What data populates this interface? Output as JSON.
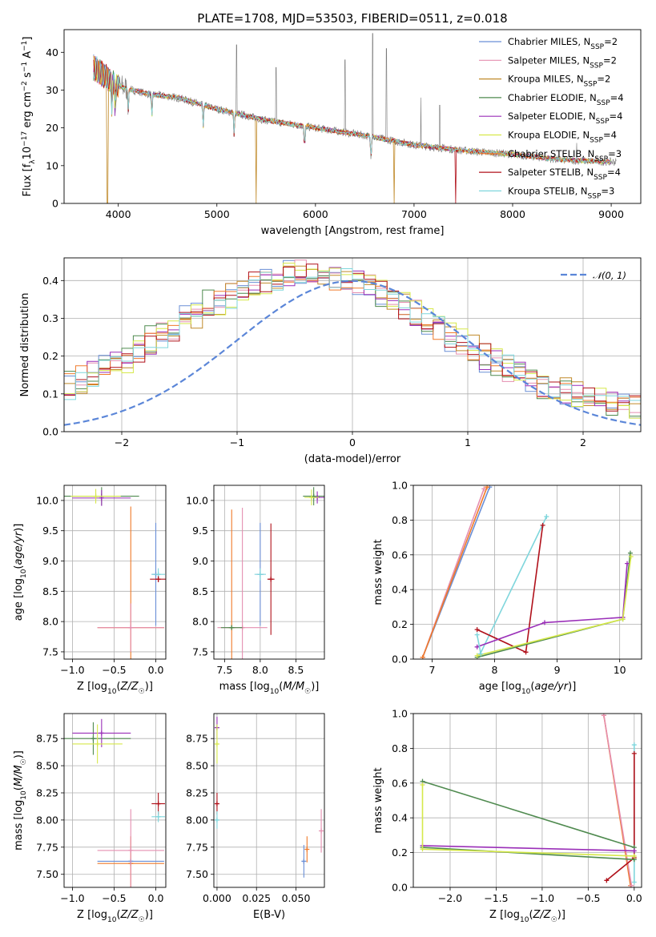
{
  "figure": {
    "title": "PLATE=1708, MJD=53503, FIBERID=0511, z=0.018"
  },
  "colors": {
    "Chabrier MILES": "#6a8fd6",
    "Salpeter MILES": "#e58fb0",
    "Kroupa MILES": "#c08a2a",
    "Chabrier ELODIE": "#4f8a4f",
    "Salpeter ELODIE": "#9a2fb8",
    "Kroupa ELODIE": "#d6e84a",
    "Chabrier STELIB": "#f07a2a",
    "Salpeter STELIB": "#b0101a",
    "Kroupa STELIB": "#7fd6dc",
    "data": "#7a7a7a",
    "normal": "#5b86d8"
  },
  "chart_data": [
    {
      "id": "spectrum",
      "type": "line",
      "xlabel": "wavelength [Angstrom, rest frame]",
      "ylabel": "Flux [f_λ 10^-17 erg cm^-2 s^-1 A^-1]",
      "xlim": [
        3450,
        9300
      ],
      "ylim": [
        0,
        46
      ],
      "xticks": [
        "4000",
        "5000",
        "6000",
        "7000",
        "8000",
        "9000"
      ],
      "yticks": [
        "0",
        "10",
        "20",
        "30",
        "40"
      ],
      "grid": false,
      "legend": "top-right",
      "legend_entries": [
        {
          "name": "Chabrier MILES",
          "nssp": "2"
        },
        {
          "name": "Salpeter MILES",
          "nssp": "2"
        },
        {
          "name": "Kroupa MILES",
          "nssp": "2"
        },
        {
          "name": "Chabrier ELODIE",
          "nssp": "4"
        },
        {
          "name": "Salpeter ELODIE",
          "nssp": "4"
        },
        {
          "name": "Kroupa ELODIE",
          "nssp": "4"
        },
        {
          "name": "Chabrier STELIB",
          "nssp": "3"
        },
        {
          "name": "Salpeter STELIB",
          "nssp": "4"
        },
        {
          "name": "Kroupa STELIB",
          "nssp": "3"
        }
      ],
      "continuum": [
        [
          3750,
          36
        ],
        [
          3900,
          33
        ],
        [
          4000,
          31
        ],
        [
          4300,
          29
        ],
        [
          4600,
          28
        ],
        [
          5000,
          25
        ],
        [
          5500,
          22
        ],
        [
          6000,
          20
        ],
        [
          6500,
          18
        ],
        [
          7000,
          15.5
        ],
        [
          7500,
          14
        ],
        [
          8000,
          13
        ],
        [
          8500,
          11.5
        ],
        [
          9000,
          11
        ]
      ],
      "data_spikes": [
        [
          5200,
          42
        ],
        [
          5600,
          36
        ],
        [
          6300,
          38
        ],
        [
          6580,
          45
        ],
        [
          6720,
          41
        ],
        [
          7070,
          28
        ],
        [
          7260,
          26
        ],
        [
          8650,
          16
        ]
      ],
      "model_dips": [
        {
          "series": "Kroupa MILES",
          "x": 3890,
          "y": 0
        },
        {
          "series": "Kroupa MILES",
          "x": 5395,
          "y": 0
        },
        {
          "series": "Kroupa MILES",
          "x": 6800,
          "y": 0
        },
        {
          "series": "Salpeter STELIB",
          "x": 7425,
          "y": 0
        }
      ]
    },
    {
      "id": "residual-histogram",
      "type": "bar",
      "xlabel": "(data-model)/error",
      "ylabel": "Normed distribution",
      "xlim": [
        -2.5,
        2.5
      ],
      "ylim": [
        0,
        0.46
      ],
      "xticks": [
        "−2",
        "−1",
        "0",
        "1",
        "2"
      ],
      "yticks": [
        "0.0",
        "0.1",
        "0.2",
        "0.3",
        "0.4"
      ],
      "grid": true,
      "legend": "top-right",
      "normal_label": "𝒩(0, 1)",
      "bins": 50
    },
    {
      "id": "age-vs-Z",
      "type": "scatter",
      "xlabel": "Z [log10(Z/Z☉)]",
      "ylabel": "age [log10(age/yr)]",
      "xlim": [
        -1.1,
        0.12
      ],
      "ylim": [
        7.38,
        10.25
      ],
      "xticks": [
        "−1.0",
        "−0.5",
        "0.0"
      ],
      "yticks": [
        "7.5",
        "8.0",
        "8.5",
        "9.0",
        "9.5",
        "10.0"
      ],
      "grid": true,
      "points": [
        {
          "series": "Chabrier ELODIE",
          "x": -0.65,
          "y": 10.07,
          "ex": 0.45,
          "ey": 0.15
        },
        {
          "series": "Salpeter ELODIE",
          "x": -0.65,
          "y": 10.04,
          "ex": 0.35,
          "ey": 0.13
        },
        {
          "series": "Kroupa ELODIE",
          "x": -0.72,
          "y": 10.07,
          "ex": 0.3,
          "ey": 0.12
        },
        {
          "series": "Chabrier MILES",
          "x": 0.0,
          "y": 8.78,
          "ex": 0.05,
          "ey": 0.85
        },
        {
          "series": "Kroupa STELIB",
          "x": 0.03,
          "y": 8.78,
          "ex": 0.08,
          "ey": 0.1
        },
        {
          "series": "Salpeter STELIB",
          "x": 0.03,
          "y": 8.7,
          "ex": 0.1,
          "ey": 0.05
        },
        {
          "series": "Chabrier STELIB",
          "x": -0.3,
          "y": 7.9,
          "ex": 0.4,
          "ey": 2.0
        },
        {
          "series": "Salpeter MILES",
          "x": -0.3,
          "y": 7.9,
          "ex": 0.4,
          "ey": 0.4
        }
      ]
    },
    {
      "id": "age-vs-mass",
      "type": "scatter",
      "xlabel": "mass [log10(M/M☉)]",
      "ylabel": "",
      "xlim": [
        7.35,
        8.9
      ],
      "ylim": [
        7.38,
        10.25
      ],
      "xticks": [
        "7.5",
        "8.0",
        "8.5"
      ],
      "yticks": [
        "7.5",
        "8.0",
        "8.5",
        "9.0",
        "9.5",
        "10.0"
      ],
      "grid": true,
      "points": [
        {
          "series": "Chabrier ELODIE",
          "x": 8.75,
          "y": 10.07,
          "ex": 0.15,
          "ey": 0.15
        },
        {
          "series": "Salpeter ELODIE",
          "x": 8.8,
          "y": 10.05,
          "ex": 0.1,
          "ey": 0.1
        },
        {
          "series": "Kroupa ELODIE",
          "x": 8.72,
          "y": 10.05,
          "ex": 0.1,
          "ey": 0.13
        },
        {
          "series": "Chabrier MILES",
          "x": 8.0,
          "y": 8.78,
          "ex": 0.05,
          "ey": 0.85
        },
        {
          "series": "Kroupa STELIB",
          "x": 8.0,
          "y": 8.78,
          "ex": 0.08,
          "ey": 0.1
        },
        {
          "series": "Salpeter STELIB",
          "x": 8.15,
          "y": 8.7,
          "ex": 0.05,
          "ey": 0.92
        },
        {
          "series": "Chabrier STELIB",
          "x": 7.6,
          "y": 7.9,
          "ex": 0.05,
          "ey": 1.95
        },
        {
          "series": "Salpeter MILES",
          "x": 7.75,
          "y": 7.9,
          "ex": 0.35,
          "ey": 1.98
        },
        {
          "series": "Chabrier ELODIE",
          "x": 7.6,
          "y": 7.9,
          "ex": 0.15,
          "ey": 0.0
        }
      ]
    },
    {
      "id": "massweight-vs-age",
      "type": "line",
      "xlabel": "age  [log10(age/yr)]",
      "ylabel": "mass weight",
      "xlim": [
        6.7,
        10.35
      ],
      "ylim": [
        0,
        1
      ],
      "xticks": [
        "7",
        "8",
        "9",
        "10"
      ],
      "yticks": [
        "0.0",
        "0.2",
        "0.4",
        "0.6",
        "0.8",
        "1.0"
      ],
      "grid": true,
      "series": [
        {
          "name": "Chabrier MILES",
          "x": [
            6.85,
            7.92
          ],
          "y": [
            0.01,
            0.99
          ]
        },
        {
          "name": "Salpeter MILES",
          "x": [
            6.85,
            7.83
          ],
          "y": [
            0.01,
            0.98
          ]
        },
        {
          "name": "Chabrier STELIB",
          "x": [
            6.85,
            7.88
          ],
          "y": [
            0.01,
            0.99
          ]
        },
        {
          "name": "Kroupa STELIB",
          "x": [
            7.77,
            8.83
          ],
          "y": [
            0.03,
            0.82
          ]
        },
        {
          "name": "Salpeter STELIB",
          "x": [
            7.72,
            8.5,
            8.77
          ],
          "y": [
            0.17,
            0.04,
            0.77
          ]
        },
        {
          "name": "Chabrier ELODIE",
          "x": [
            7.72,
            10.05,
            10.17
          ],
          "y": [
            0.01,
            0.23,
            0.61
          ]
        },
        {
          "name": "Salpeter ELODIE",
          "x": [
            7.72,
            8.8,
            10.05,
            10.12
          ],
          "y": [
            0.07,
            0.21,
            0.24,
            0.55
          ]
        },
        {
          "name": "Kroupa ELODIE",
          "x": [
            7.72,
            10.05,
            10.18
          ],
          "y": [
            0.02,
            0.23,
            0.59
          ]
        },
        {
          "name": "Kroupa STELIB",
          "x": [
            7.72,
            7.78
          ],
          "y": [
            0.14,
            0.03
          ]
        }
      ]
    },
    {
      "id": "mass-vs-Z",
      "type": "scatter",
      "xlabel": "Z [log10(Z/Z☉)]",
      "ylabel": "mass [log10(M/M☉)]",
      "xlim": [
        -1.1,
        0.12
      ],
      "ylim": [
        7.38,
        8.98
      ],
      "xticks": [
        "−1.0",
        "−0.5",
        "0.0"
      ],
      "yticks": [
        "7.50",
        "7.75",
        "8.00",
        "8.25",
        "8.50",
        "8.75"
      ],
      "grid": true,
      "points": [
        {
          "series": "Chabrier ELODIE",
          "x": -0.75,
          "y": 8.75,
          "ex": 0.45,
          "ey": 0.15
        },
        {
          "series": "Salpeter ELODIE",
          "x": -0.65,
          "y": 8.8,
          "ex": 0.35,
          "ey": 0.13
        },
        {
          "series": "Kroupa ELODIE",
          "x": -0.7,
          "y": 8.7,
          "ex": 0.3,
          "ey": 0.18
        },
        {
          "series": "Salpeter STELIB",
          "x": 0.03,
          "y": 8.15,
          "ex": 0.08,
          "ey": 0.1
        },
        {
          "series": "Kroupa STELIB",
          "x": 0.03,
          "y": 8.03,
          "ex": 0.08,
          "ey": 0.05
        },
        {
          "series": "Chabrier STELIB",
          "x": -0.3,
          "y": 7.6,
          "ex": 0.4,
          "ey": 0.25
        },
        {
          "series": "Chabrier MILES",
          "x": -0.3,
          "y": 7.62,
          "ex": 0.4,
          "ey": 0.0
        },
        {
          "series": "Salpeter MILES",
          "x": -0.3,
          "y": 7.72,
          "ex": 0.4,
          "ey": 0.38
        }
      ]
    },
    {
      "id": "mass-vs-EBV",
      "type": "scatter",
      "xlabel": "E(B-V)",
      "ylabel": "",
      "xlim": [
        -0.002,
        0.068
      ],
      "ylim": [
        7.38,
        8.98
      ],
      "xticks": [
        "0.000",
        "0.025",
        "0.050"
      ],
      "yticks": [
        "7.50",
        "7.75",
        "8.00",
        "8.25",
        "8.50",
        "8.75"
      ],
      "grid": true,
      "points": [
        {
          "series": "Salpeter ELODIE",
          "x": 0.0,
          "y": 8.85,
          "ex": 0.0,
          "ey": 0.1
        },
        {
          "series": "Kroupa ELODIE",
          "x": 0.0,
          "y": 8.7,
          "ex": 0.0,
          "ey": 0.18
        },
        {
          "series": "Salpeter STELIB",
          "x": 0.0,
          "y": 8.15,
          "ex": 0.0,
          "ey": 0.1
        },
        {
          "series": "Kroupa STELIB",
          "x": 0.0,
          "y": 8.0,
          "ex": 0.0,
          "ey": 0.08
        },
        {
          "series": "Chabrier MILES",
          "x": 0.055,
          "y": 7.62,
          "ex": 0.0,
          "ey": 0.15
        },
        {
          "series": "Chabrier STELIB",
          "x": 0.057,
          "y": 7.73,
          "ex": 0.0,
          "ey": 0.12
        },
        {
          "series": "Salpeter MILES",
          "x": 0.066,
          "y": 7.9,
          "ex": 0.0,
          "ey": 0.2
        }
      ]
    },
    {
      "id": "massweight-vs-Z",
      "type": "line",
      "xlabel": "Z [log10(Z/Z☉)]",
      "ylabel": "mass weight",
      "xlim": [
        -2.4,
        0.08
      ],
      "ylim": [
        0,
        1
      ],
      "xticks": [
        "−2.0",
        "−1.5",
        "−1.0",
        "−0.5",
        "0.0"
      ],
      "yticks": [
        "0.0",
        "0.2",
        "0.4",
        "0.6",
        "0.8",
        "1.0"
      ],
      "grid": true,
      "series": [
        {
          "name": "Chabrier STELIB",
          "x": [
            -0.33,
            -0.04
          ],
          "y": [
            0.99,
            0.01
          ]
        },
        {
          "name": "Salpeter MILES",
          "x": [
            -0.33,
            -0.03
          ],
          "y": [
            0.99,
            0.01
          ]
        },
        {
          "name": "Kroupa STELIB",
          "x": [
            0.0,
            0.0
          ],
          "y": [
            0.82,
            0.03
          ]
        },
        {
          "name": "Salpeter STELIB",
          "x": [
            -0.3,
            0.0,
            0.0
          ],
          "y": [
            0.04,
            0.17,
            0.77
          ]
        },
        {
          "name": "Chabrier ELODIE",
          "x": [
            -2.3,
            0.0
          ],
          "y": [
            0.61,
            0.23
          ]
        },
        {
          "name": "Chabrier ELODIE",
          "x": [
            -2.3,
            0.0
          ],
          "y": [
            0.23,
            0.16
          ]
        },
        {
          "name": "Salpeter ELODIE",
          "x": [
            -2.3,
            0.0
          ],
          "y": [
            0.24,
            0.21
          ]
        },
        {
          "name": "Kroupa ELODIE",
          "x": [
            -2.3,
            -2.3,
            0.0
          ],
          "y": [
            0.59,
            0.22,
            0.18
          ]
        }
      ]
    }
  ]
}
